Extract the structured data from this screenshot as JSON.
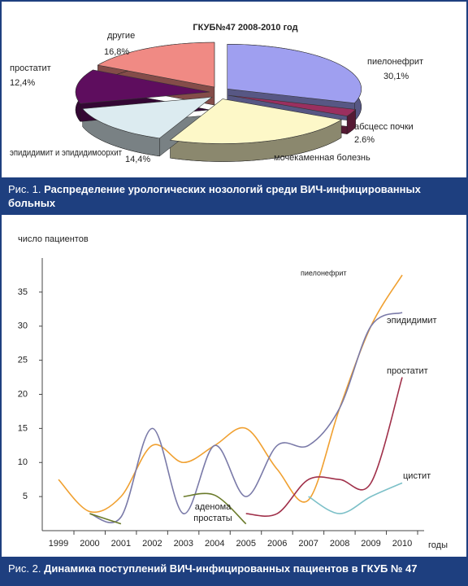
{
  "chart_data": [
    {
      "type": "pie",
      "title": "ГКУБ№47 2008-2010 год",
      "categories": [
        "пиелонефрит",
        "абсцесс почки",
        "мочекаменная болезнь",
        "эпидидимит и эпидидимоорхит",
        "простатит",
        "другие"
      ],
      "values": [
        30.1,
        2.6,
        23.7,
        14.4,
        12.4,
        16.8
      ],
      "value_labels": [
        "30,1%",
        "2.6%",
        null,
        "14,4%",
        "12,4%",
        "16,8%"
      ],
      "colors": [
        "#9f9ff0",
        "#9b2f5f",
        "#fdf8c8",
        "#dcebf0",
        "#5e0d5e",
        "#f08a84"
      ],
      "caption_label": "Рис. 1.",
      "caption": "Распределение урологических нозологий среди ВИЧ-инфицированных больных"
    },
    {
      "type": "line",
      "y_label": "число пациентов",
      "x_label": "годы",
      "categories": [
        "1999",
        "2000",
        "2001",
        "2002",
        "2003",
        "2004",
        "2005",
        "2006",
        "2007",
        "2008",
        "2009",
        "2010"
      ],
      "series": [
        {
          "name": "пиелонефрит",
          "color": "#f0a030",
          "values": [
            7.5,
            2.8,
            5,
            12.5,
            10,
            12.5,
            15,
            9,
            4.5,
            18,
            30,
            37.5
          ]
        },
        {
          "name": "эпидидимит",
          "color": "#7a7aa8",
          "values": [
            null,
            2.5,
            2,
            15,
            2.5,
            12.5,
            5,
            12.5,
            12.5,
            18,
            30,
            32
          ]
        },
        {
          "name": "простатит",
          "color": "#a0304a",
          "values": [
            null,
            null,
            null,
            null,
            null,
            null,
            2.5,
            2.5,
            7.5,
            7.5,
            7,
            22.5
          ]
        },
        {
          "name": "цистит",
          "color": "#7cc0c8",
          "values": [
            null,
            null,
            null,
            null,
            null,
            null,
            null,
            null,
            5,
            2.5,
            5,
            7
          ]
        },
        {
          "name": "аденома простаты",
          "color": "#6a7a2a",
          "values": [
            null,
            2.5,
            1,
            null,
            5,
            5.2,
            1,
            null,
            null,
            null,
            null,
            null
          ]
        }
      ],
      "ylim": [
        0,
        40
      ],
      "yticks": [
        5,
        10,
        15,
        20,
        25,
        30,
        35
      ],
      "caption_label": "Рис. 2.",
      "caption": "Динамика поступлений ВИЧ-инфицированных пациентов в ГКУБ № 47"
    }
  ]
}
